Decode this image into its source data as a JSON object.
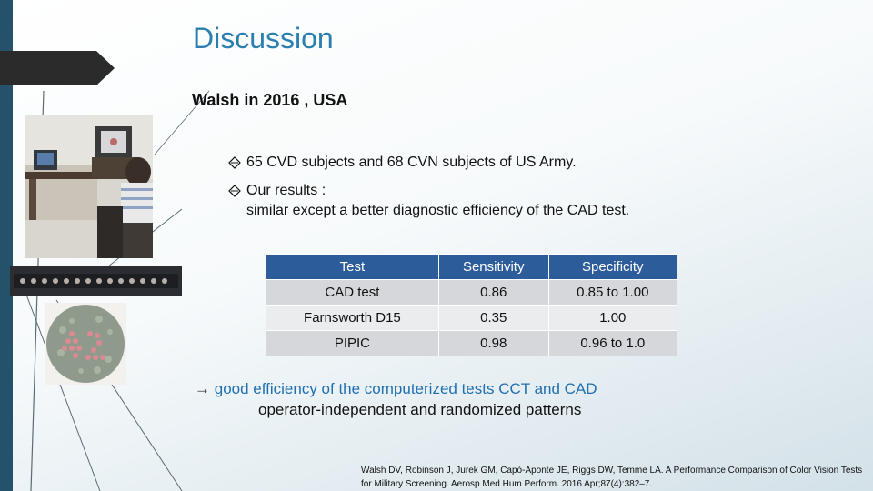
{
  "slide": {
    "title": "Discussion",
    "subtitle": "Walsh in 2016 , USA",
    "bullets": [
      {
        "lines": [
          "65 CVD subjects and 68 CVN subjects of US Army."
        ]
      },
      {
        "lines": [
          "Our results :",
          "similar except a better diagnostic efficiency of the CAD test."
        ]
      }
    ],
    "table": {
      "headers": [
        "Test",
        "Sensitivity",
        "Specificity"
      ],
      "rows": [
        [
          "CAD test",
          "0.86",
          "0.85 to 1.00"
        ],
        [
          "Farnsworth D15",
          "0.35",
          "1.00"
        ],
        [
          "PIPIC",
          "0.98",
          "0.96 to 1.0"
        ]
      ]
    },
    "conclusion": {
      "arrow": "→",
      "line1": "good efficiency of the computerized tests CCT and CAD",
      "line2": "operator-independent and randomized patterns"
    },
    "citation": "Walsh DV, Robinson J, Jurek GM, Capó-Aponte JE, Riggs DW, Temme LA. A Performance Comparison of Color Vision Tests for Military Screening. Aerosp Med Hum Perform. 2016 Apr;87(4):382–7."
  },
  "colors": {
    "left_bar": "#25526b",
    "title": "#2a7fb0",
    "table_header": "#2d5c9a",
    "conclusion_highlight": "#1f6fb0"
  },
  "icons": {
    "bullet": "diamond-arrow-icon",
    "conclusion": "right-arrow-icon"
  }
}
